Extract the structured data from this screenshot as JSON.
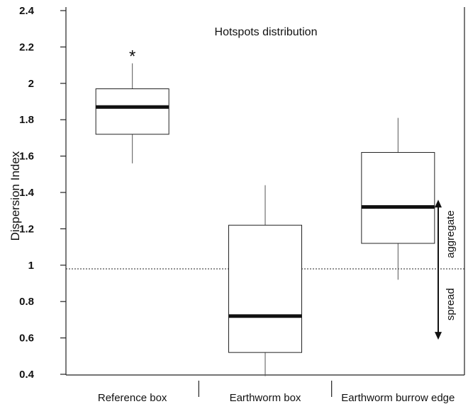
{
  "chart_data": {
    "type": "box",
    "title": "Hotspots distribution",
    "ylabel": "Dispersion Index",
    "xlabel": "",
    "ylim": [
      0.4,
      2.4
    ],
    "yticks": [
      "0.4",
      "0.6",
      "0.8",
      "1",
      "1.2",
      "1.4",
      "1.6",
      "1.8",
      "2",
      "2.2",
      "2.4"
    ],
    "categories": [
      "Reference box",
      "Earthworm box",
      "Earthworm burrow edge"
    ],
    "boxes": [
      {
        "category": "Reference box",
        "whisker_low": 1.56,
        "q1": 1.72,
        "median": 1.87,
        "q3": 1.97,
        "whisker_high": 2.11,
        "marker": "*"
      },
      {
        "category": "Earthworm box",
        "whisker_low": 0.39,
        "q1": 0.52,
        "median": 0.72,
        "q3": 1.22,
        "whisker_high": 1.44,
        "marker": ""
      },
      {
        "category": "Earthworm burrow edge",
        "whisker_low": 0.92,
        "q1": 1.12,
        "median": 1.32,
        "q3": 1.62,
        "whisker_high": 1.81,
        "marker": ""
      }
    ],
    "reference_line": {
      "y": 0.98,
      "style": "dotted"
    },
    "annotations": {
      "upper": "aggregate",
      "lower": "spread",
      "arrow_top": 1.36,
      "arrow_bottom": 0.59
    },
    "grid": false
  }
}
